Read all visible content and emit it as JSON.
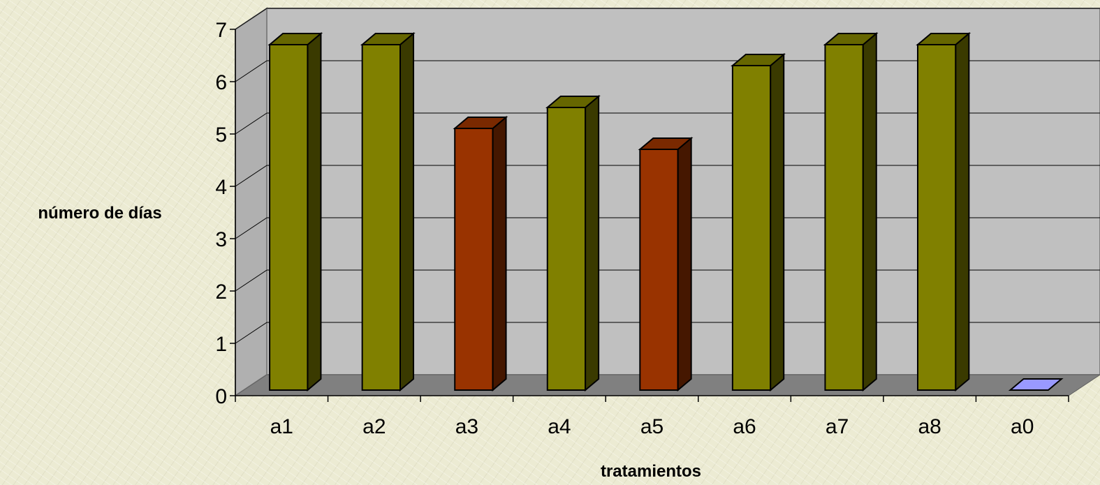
{
  "chart_data": {
    "type": "bar",
    "categories": [
      "a1",
      "a2",
      "a3",
      "a4",
      "a5",
      "a6",
      "a7",
      "a8",
      "a0"
    ],
    "values": [
      6.6,
      6.6,
      5.0,
      5.4,
      4.6,
      6.2,
      6.6,
      6.6,
      0
    ],
    "bar_colors": [
      "#808000",
      "#808000",
      "#993300",
      "#808000",
      "#993300",
      "#808000",
      "#808000",
      "#808000",
      "#9999ff"
    ],
    "xlabel": "tratamientos",
    "ylabel": "número de días",
    "ylim": [
      0,
      7
    ],
    "yticks": [
      "0",
      "1",
      "2",
      "3",
      "4",
      "5",
      "6",
      "7"
    ],
    "grid": true,
    "style": "3d-column",
    "colors": {
      "wall": "#c0c0c0",
      "floor": "#808080",
      "side_wall": "#b0b0b0",
      "gridline": "#000000"
    }
  }
}
